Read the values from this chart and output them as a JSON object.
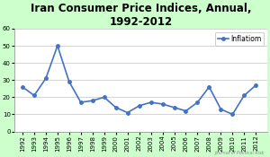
{
  "title": "Iran Consumer Price Indices, Annual,\n1992-2012",
  "years": [
    1992,
    1993,
    1994,
    1995,
    1996,
    1997,
    1998,
    1999,
    2000,
    2001,
    2002,
    2003,
    2004,
    2005,
    2006,
    2007,
    2008,
    2009,
    2010,
    2011,
    2012
  ],
  "inflation": [
    26,
    21,
    31,
    50,
    29,
    17,
    18,
    20,
    14,
    11,
    15,
    17,
    16,
    14,
    12,
    17,
    26,
    13,
    10,
    21,
    27
  ],
  "line_color": "#4472C4",
  "marker": "o",
  "marker_size": 2.5,
  "line_width": 1.2,
  "figure_bg_color": "#CCFFCC",
  "plot_bg_color": "#FFFFFF",
  "ylim": [
    0,
    60
  ],
  "yticks": [
    0,
    10,
    20,
    30,
    40,
    50,
    60
  ],
  "legend_label": "Inflatiom",
  "watermark": "Journal of Political Risk",
  "title_fontsize": 8.5,
  "tick_fontsize": 5,
  "legend_fontsize": 5.5
}
